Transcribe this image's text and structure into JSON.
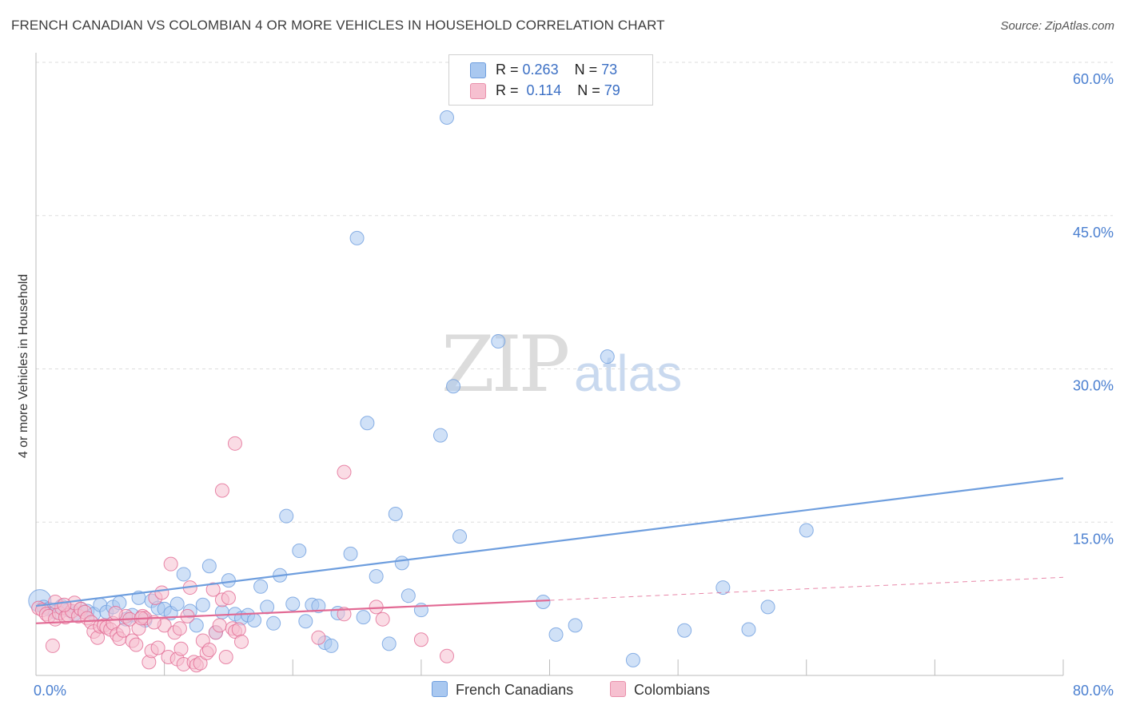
{
  "title": "FRENCH CANADIAN VS COLOMBIAN 4 OR MORE VEHICLES IN HOUSEHOLD CORRELATION CHART",
  "source": "Source: ZipAtlas.com",
  "watermark": {
    "zip": "ZIP",
    "atlas": "atlas"
  },
  "legend": {
    "r_label": "R =",
    "n_label": "N =",
    "series": [
      {
        "r": "0.263",
        "n": "73",
        "color": "#a9c8f0",
        "border": "#6e9ede"
      },
      {
        "r": "0.114",
        "n": "79",
        "color": "#f6c0d0",
        "border": "#e990ab"
      }
    ]
  },
  "chart_data": {
    "type": "scatter",
    "title": "FRENCH CANADIAN VS COLOMBIAN 4 OR MORE VEHICLES IN HOUSEHOLD CORRELATION CHART",
    "xlabel": "",
    "ylabel": "4 or more Vehicles in Household",
    "xlim": [
      0,
      80
    ],
    "ylim": [
      0,
      60
    ],
    "x_tick_labels": [
      "0.0%",
      "80.0%"
    ],
    "y_ticks": [
      15,
      30,
      45,
      60
    ],
    "y_tick_labels": [
      "15.0%",
      "30.0%",
      "45.0%",
      "60.0%"
    ],
    "grid": true,
    "legend_position": "top-center",
    "series": [
      {
        "name": "French Canadians",
        "color": "#6e9ede",
        "fill": "#a9c8f0",
        "trend": {
          "x": [
            0,
            80
          ],
          "y": [
            6.8,
            19.3
          ],
          "dashed_from": null
        },
        "points": [
          [
            0.3,
            7.3
          ],
          [
            0.6,
            6.7
          ],
          [
            1.0,
            6.5
          ],
          [
            1.5,
            6.2
          ],
          [
            2.0,
            6.8
          ],
          [
            2.5,
            6.4
          ],
          [
            3.0,
            6.0
          ],
          [
            3.5,
            6.5
          ],
          [
            4.0,
            6.3
          ],
          [
            4.5,
            6.0
          ],
          [
            5.0,
            6.9
          ],
          [
            5.5,
            6.2
          ],
          [
            6.0,
            6.7
          ],
          [
            6.5,
            7.1
          ],
          [
            7.0,
            5.5
          ],
          [
            7.5,
            5.9
          ],
          [
            8.0,
            7.6
          ],
          [
            8.5,
            5.4
          ],
          [
            9.0,
            7.3
          ],
          [
            9.5,
            6.6
          ],
          [
            10.0,
            6.5
          ],
          [
            10.5,
            6.1
          ],
          [
            11.0,
            7.0
          ],
          [
            11.5,
            9.9
          ],
          [
            12.0,
            6.3
          ],
          [
            12.5,
            4.9
          ],
          [
            13.0,
            6.9
          ],
          [
            13.5,
            10.7
          ],
          [
            14.0,
            4.2
          ],
          [
            14.5,
            6.2
          ],
          [
            15.0,
            9.3
          ],
          [
            15.5,
            6.0
          ],
          [
            16.0,
            5.6
          ],
          [
            16.5,
            5.9
          ],
          [
            17.0,
            5.4
          ],
          [
            17.5,
            8.7
          ],
          [
            18.0,
            6.7
          ],
          [
            18.5,
            5.1
          ],
          [
            19.0,
            9.8
          ],
          [
            19.5,
            15.6
          ],
          [
            20.0,
            7.0
          ],
          [
            20.5,
            12.2
          ],
          [
            21.0,
            5.3
          ],
          [
            21.5,
            6.9
          ],
          [
            22.0,
            6.8
          ],
          [
            22.5,
            3.2
          ],
          [
            23.0,
            2.9
          ],
          [
            23.5,
            6.1
          ],
          [
            24.5,
            11.9
          ],
          [
            25.0,
            42.8
          ],
          [
            25.5,
            5.7
          ],
          [
            25.8,
            24.7
          ],
          [
            26.5,
            9.7
          ],
          [
            27.5,
            3.1
          ],
          [
            28.0,
            15.8
          ],
          [
            28.5,
            11.0
          ],
          [
            29.0,
            7.8
          ],
          [
            30.0,
            6.4
          ],
          [
            31.5,
            23.5
          ],
          [
            32.0,
            54.6
          ],
          [
            32.5,
            28.3
          ],
          [
            33.0,
            13.6
          ],
          [
            36.0,
            32.7
          ],
          [
            39.5,
            7.2
          ],
          [
            40.5,
            4.0
          ],
          [
            42.0,
            4.9
          ],
          [
            44.5,
            31.2
          ],
          [
            46.5,
            1.5
          ],
          [
            50.5,
            4.4
          ],
          [
            53.5,
            8.6
          ],
          [
            55.5,
            4.5
          ],
          [
            57.0,
            6.7
          ],
          [
            60.0,
            14.2
          ]
        ]
      },
      {
        "name": "Colombians",
        "color": "#e26a94",
        "fill": "#f6c0d0",
        "trend": {
          "x": [
            0,
            80
          ],
          "y": [
            5.1,
            9.6
          ],
          "dashed_from": 40
        },
        "points": [
          [
            0.2,
            6.6
          ],
          [
            0.5,
            6.4
          ],
          [
            0.8,
            6.0
          ],
          [
            1.0,
            5.8
          ],
          [
            1.3,
            2.9
          ],
          [
            1.5,
            5.5
          ],
          [
            1.8,
            6.1
          ],
          [
            2.0,
            6.6
          ],
          [
            2.3,
            5.7
          ],
          [
            2.5,
            5.9
          ],
          [
            2.8,
            6.3
          ],
          [
            3.0,
            7.1
          ],
          [
            3.3,
            5.8
          ],
          [
            3.5,
            6.5
          ],
          [
            3.8,
            6.2
          ],
          [
            4.0,
            5.6
          ],
          [
            4.3,
            5.2
          ],
          [
            4.5,
            4.3
          ],
          [
            4.8,
            3.7
          ],
          [
            5.0,
            4.8
          ],
          [
            5.3,
            4.9
          ],
          [
            5.5,
            4.7
          ],
          [
            5.8,
            4.5
          ],
          [
            6.0,
            5.1
          ],
          [
            6.3,
            4.0
          ],
          [
            6.5,
            3.6
          ],
          [
            6.8,
            4.4
          ],
          [
            7.0,
            5.8
          ],
          [
            7.3,
            5.5
          ],
          [
            7.5,
            3.4
          ],
          [
            7.8,
            3.0
          ],
          [
            8.0,
            4.6
          ],
          [
            8.3,
            5.8
          ],
          [
            8.5,
            5.6
          ],
          [
            8.8,
            1.3
          ],
          [
            9.0,
            2.4
          ],
          [
            9.3,
            7.6
          ],
          [
            9.5,
            2.7
          ],
          [
            9.8,
            8.1
          ],
          [
            10.0,
            4.9
          ],
          [
            10.3,
            1.8
          ],
          [
            10.5,
            10.9
          ],
          [
            10.8,
            4.2
          ],
          [
            11.0,
            1.6
          ],
          [
            11.3,
            2.6
          ],
          [
            11.5,
            1.1
          ],
          [
            11.8,
            5.8
          ],
          [
            12.0,
            8.6
          ],
          [
            12.3,
            1.3
          ],
          [
            12.5,
            1.0
          ],
          [
            12.8,
            1.2
          ],
          [
            13.0,
            3.4
          ],
          [
            13.3,
            2.2
          ],
          [
            13.5,
            2.5
          ],
          [
            13.8,
            8.4
          ],
          [
            14.0,
            4.2
          ],
          [
            14.3,
            4.9
          ],
          [
            14.5,
            7.4
          ],
          [
            14.8,
            1.8
          ],
          [
            15.0,
            7.6
          ],
          [
            15.3,
            4.6
          ],
          [
            15.5,
            4.3
          ],
          [
            15.8,
            4.5
          ],
          [
            16.0,
            3.3
          ],
          [
            14.5,
            18.1
          ],
          [
            15.5,
            22.7
          ],
          [
            24.0,
            19.9
          ],
          [
            22.0,
            3.7
          ],
          [
            24.0,
            6.0
          ],
          [
            26.5,
            6.7
          ],
          [
            30.0,
            3.5
          ],
          [
            32.0,
            1.9
          ],
          [
            27.0,
            5.5
          ],
          [
            1.5,
            7.2
          ],
          [
            2.2,
            6.9
          ],
          [
            6.2,
            6.1
          ],
          [
            8.2,
            5.6
          ],
          [
            11.2,
            4.6
          ],
          [
            9.2,
            5.2
          ]
        ]
      }
    ]
  }
}
